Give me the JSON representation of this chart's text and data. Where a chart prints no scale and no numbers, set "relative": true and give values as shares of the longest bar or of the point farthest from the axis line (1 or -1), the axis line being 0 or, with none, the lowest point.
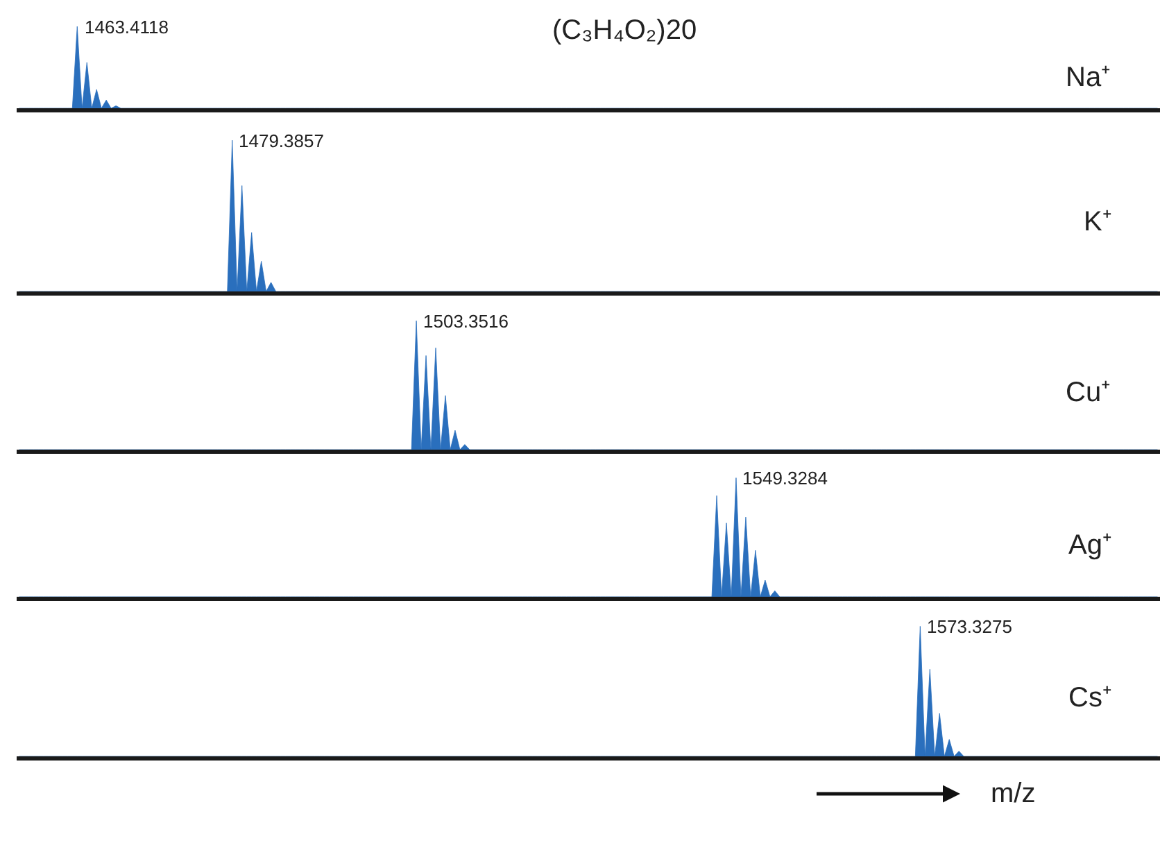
{
  "chart_data": [
    {
      "type": "area",
      "relative": true,
      "title": "(C₃H₄O₂)20",
      "legend": false,
      "categories": [
        null,
        null,
        null,
        null,
        null,
        null,
        null,
        null,
        null,
        null,
        null,
        null,
        null,
        null,
        null,
        null,
        null,
        null,
        null,
        null,
        null,
        null,
        null,
        null,
        null,
        null,
        null,
        null,
        null,
        null,
        null,
        null,
        null,
        null,
        null,
        null,
        null,
        null,
        null,
        null,
        null,
        null,
        null,
        null,
        null,
        null,
        null,
        null,
        null,
        null,
        null,
        null,
        null,
        null,
        null,
        null,
        null,
        null,
        null,
        null,
        null,
        null,
        null,
        null,
        null,
        null,
        null,
        null,
        null,
        null,
        null,
        null,
        null,
        null,
        null,
        null,
        null,
        null,
        null,
        null,
        null,
        null,
        null,
        null,
        null,
        null,
        null,
        null,
        null,
        null,
        null,
        null,
        null,
        null,
        null,
        null,
        null,
        null,
        null,
        null,
        null,
        null,
        null,
        null,
        null,
        null,
        null,
        null,
        null,
        null,
        null,
        null,
        null,
        null,
        null,
        null,
        null,
        null,
        null,
        null,
        null,
        null,
        null,
        null,
        null,
        null,
        null,
        null,
        null,
        null,
        null,
        null,
        null,
        null,
        null,
        null,
        null,
        null,
        null,
        null,
        null,
        null,
        null,
        null,
        null,
        null,
        null,
        null,
        null,
        null,
        null,
        null,
        null,
        null,
        null,
        null,
        null,
        null,
        null,
        null,
        null,
        null,
        null,
        null,
        null,
        null,
        null,
        null,
        null,
        null,
        null,
        null,
        null,
        null,
        null,
        null,
        null,
        null,
        null,
        null,
        null,
        null,
        null,
        null,
        null,
        null,
        null,
        null,
        null,
        null,
        null,
        null,
        null,
        null,
        null,
        null,
        null,
        null,
        null,
        null,
        null,
        null,
        null,
        null,
        null,
        null,
        null,
        null,
        null,
        null,
        null,
        null,
        null,
        null,
        null,
        null,
        null,
        null,
        null,
        null,
        null,
        null,
        null,
        null,
        null,
        null,
        null,
        null,
        null,
        null,
        null,
        null,
        null,
        null,
        null,
        null
      ],
      "series": [
        {
          "name": "Na⁺",
          "color": "#2a6fbd",
          "values": [
            0,
            0,
            0,
            0,
            0,
            0,
            0,
            0,
            0,
            0,
            0,
            0,
            1,
            0,
            0.56,
            0,
            0.23,
            0,
            0.1,
            0,
            0.03,
            0,
            0,
            0,
            0,
            0,
            0,
            0,
            0,
            0,
            0,
            0,
            0,
            0,
            0,
            0,
            0,
            0,
            0,
            0,
            0,
            0,
            0,
            0,
            0,
            0,
            0,
            0,
            0,
            0,
            0,
            0,
            0,
            0,
            0,
            0,
            0,
            0,
            0,
            0,
            0,
            0,
            0,
            0,
            0,
            0,
            0,
            0,
            0,
            0,
            0,
            0,
            0,
            0,
            0,
            0,
            0,
            0,
            0,
            0,
            0,
            0,
            0,
            0,
            0,
            0,
            0,
            0,
            0,
            0,
            0,
            0,
            0,
            0,
            0,
            0,
            0,
            0,
            0,
            0,
            0,
            0,
            0,
            0,
            0,
            0,
            0,
            0,
            0,
            0,
            0,
            0,
            0,
            0,
            0,
            0,
            0,
            0,
            0,
            0,
            0,
            0,
            0,
            0,
            0,
            0,
            0,
            0,
            0,
            0,
            0,
            0,
            0,
            0,
            0,
            0,
            0,
            0,
            0,
            0,
            0,
            0,
            0,
            0,
            0,
            0,
            0,
            0,
            0,
            0,
            0,
            0,
            0,
            0,
            0,
            0,
            0,
            0,
            0,
            0,
            0,
            0,
            0,
            0,
            0,
            0,
            0,
            0,
            0,
            0,
            0,
            0,
            0,
            0,
            0,
            0,
            0,
            0,
            0,
            0,
            0,
            0,
            0,
            0,
            0,
            0,
            0,
            0,
            0,
            0,
            0,
            0,
            0,
            0,
            0,
            0,
            0,
            0,
            0,
            0,
            0,
            0,
            0,
            0,
            0,
            0,
            0,
            0,
            0,
            0,
            0,
            0,
            0,
            0,
            0,
            0,
            0,
            0,
            0,
            0,
            0,
            0,
            0,
            0,
            0,
            0,
            0,
            0,
            0,
            0,
            0,
            0,
            0,
            0,
            0,
            0
          ]
        }
      ],
      "annotations": [
        "1463.4118"
      ]
    },
    {
      "type": "area",
      "relative": true,
      "legend": false,
      "categories": [
        null,
        null,
        null,
        null,
        null,
        null,
        null,
        null,
        null,
        null,
        null,
        null,
        null,
        null,
        null,
        null,
        null,
        null,
        null,
        null,
        null,
        null,
        null,
        null,
        null,
        null,
        null,
        null,
        null,
        null,
        null,
        null,
        null,
        null,
        null,
        null,
        null,
        null,
        null,
        null,
        null,
        null,
        null,
        null,
        null,
        null,
        null,
        null,
        null,
        null,
        null,
        null,
        null,
        null,
        null,
        null,
        null,
        null,
        null,
        null,
        null,
        null,
        null,
        null,
        null,
        null,
        null,
        null,
        null,
        null,
        null,
        null,
        null,
        null,
        null,
        null,
        null,
        null,
        null,
        null,
        null,
        null,
        null,
        null,
        null,
        null,
        null,
        null,
        null,
        null,
        null,
        null,
        null,
        null,
        null,
        null,
        null,
        null,
        null,
        null,
        null,
        null,
        null,
        null,
        null,
        null,
        null,
        null,
        null,
        null,
        null,
        null,
        null,
        null,
        null,
        null,
        null,
        null,
        null,
        null,
        null,
        null,
        null,
        null,
        null,
        null,
        null,
        null,
        null,
        null,
        null,
        null,
        null,
        null,
        null,
        null,
        null,
        null,
        null,
        null,
        null,
        null,
        null,
        null,
        null,
        null,
        null,
        null,
        null,
        null,
        null,
        null,
        null,
        null,
        null,
        null,
        null,
        null,
        null,
        null,
        null,
        null,
        null,
        null,
        null,
        null,
        null,
        null,
        null,
        null,
        null,
        null,
        null,
        null,
        null,
        null,
        null,
        null,
        null,
        null,
        null,
        null,
        null,
        null,
        null,
        null,
        null,
        null,
        null,
        null,
        null,
        null,
        null,
        null,
        null,
        null,
        null,
        null,
        null,
        null,
        null,
        null,
        null,
        null,
        null,
        null,
        null,
        null,
        null,
        null,
        null,
        null,
        null,
        null,
        null,
        null,
        null,
        null,
        null,
        null,
        null,
        null,
        null,
        null,
        null,
        null,
        null,
        null,
        null,
        null,
        null,
        null,
        null,
        null,
        null,
        null
      ],
      "series": [
        {
          "name": "K⁺",
          "color": "#2a6fbd",
          "values": [
            0,
            0,
            0,
            0,
            0,
            0,
            0,
            0,
            0,
            0,
            0,
            0,
            0,
            0,
            0,
            0,
            0,
            0,
            0,
            0,
            0,
            0,
            0,
            0,
            0,
            0,
            0,
            0,
            0,
            0,
            0,
            0,
            0,
            0,
            0,
            0,
            0,
            0,
            0,
            0,
            0,
            0,
            0,
            0,
            1,
            0,
            0.7,
            0,
            0.39,
            0,
            0.2,
            0,
            0.06,
            0,
            0,
            0,
            0,
            0,
            0,
            0,
            0,
            0,
            0,
            0,
            0,
            0,
            0,
            0,
            0,
            0,
            0,
            0,
            0,
            0,
            0,
            0,
            0,
            0,
            0,
            0,
            0,
            0,
            0,
            0,
            0,
            0,
            0,
            0,
            0,
            0,
            0,
            0,
            0,
            0,
            0,
            0,
            0,
            0,
            0,
            0,
            0,
            0,
            0,
            0,
            0,
            0,
            0,
            0,
            0,
            0,
            0,
            0,
            0,
            0,
            0,
            0,
            0,
            0,
            0,
            0,
            0,
            0,
            0,
            0,
            0,
            0,
            0,
            0,
            0,
            0,
            0,
            0,
            0,
            0,
            0,
            0,
            0,
            0,
            0,
            0,
            0,
            0,
            0,
            0,
            0,
            0,
            0,
            0,
            0,
            0,
            0,
            0,
            0,
            0,
            0,
            0,
            0,
            0,
            0,
            0,
            0,
            0,
            0,
            0,
            0,
            0,
            0,
            0,
            0,
            0,
            0,
            0,
            0,
            0,
            0,
            0,
            0,
            0,
            0,
            0,
            0,
            0,
            0,
            0,
            0,
            0,
            0,
            0,
            0,
            0,
            0,
            0,
            0,
            0,
            0,
            0,
            0,
            0,
            0,
            0,
            0,
            0,
            0,
            0,
            0,
            0,
            0,
            0,
            0,
            0,
            0,
            0,
            0,
            0,
            0,
            0,
            0,
            0,
            0,
            0,
            0,
            0,
            0,
            0,
            0,
            0,
            0,
            0,
            0,
            0,
            0,
            0,
            0,
            0,
            0,
            0
          ]
        }
      ],
      "annotations": [
        "1479.3857"
      ]
    },
    {
      "type": "area",
      "relative": true,
      "legend": false,
      "categories": [
        null,
        null,
        null,
        null,
        null,
        null,
        null,
        null,
        null,
        null,
        null,
        null,
        null,
        null,
        null,
        null,
        null,
        null,
        null,
        null,
        null,
        null,
        null,
        null,
        null,
        null,
        null,
        null,
        null,
        null,
        null,
        null,
        null,
        null,
        null,
        null,
        null,
        null,
        null,
        null,
        null,
        null,
        null,
        null,
        null,
        null,
        null,
        null,
        null,
        null,
        null,
        null,
        null,
        null,
        null,
        null,
        null,
        null,
        null,
        null,
        null,
        null,
        null,
        null,
        null,
        null,
        null,
        null,
        null,
        null,
        null,
        null,
        null,
        null,
        null,
        null,
        null,
        null,
        null,
        null,
        null,
        null,
        null,
        null,
        null,
        null,
        null,
        null,
        null,
        null,
        null,
        null,
        null,
        null,
        null,
        null,
        null,
        null,
        null,
        null,
        null,
        null,
        null,
        null,
        null,
        null,
        null,
        null,
        null,
        null,
        null,
        null,
        null,
        null,
        null,
        null,
        null,
        null,
        null,
        null,
        null,
        null,
        null,
        null,
        null,
        null,
        null,
        null,
        null,
        null,
        null,
        null,
        null,
        null,
        null,
        null,
        null,
        null,
        null,
        null,
        null,
        null,
        null,
        null,
        null,
        null,
        null,
        null,
        null,
        null,
        null,
        null,
        null,
        null,
        null,
        null,
        null,
        null,
        null,
        null,
        null,
        null,
        null,
        null,
        null,
        null,
        null,
        null,
        null,
        null,
        null,
        null,
        null,
        null,
        null,
        null,
        null,
        null,
        null,
        null,
        null,
        null,
        null,
        null,
        null,
        null,
        null,
        null,
        null,
        null,
        null,
        null,
        null,
        null,
        null,
        null,
        null,
        null,
        null,
        null,
        null,
        null,
        null,
        null,
        null,
        null,
        null,
        null,
        null,
        null,
        null,
        null,
        null,
        null,
        null,
        null,
        null,
        null,
        null,
        null,
        null,
        null,
        null,
        null,
        null,
        null,
        null,
        null,
        null,
        null,
        null,
        null,
        null,
        null,
        null,
        null
      ],
      "series": [
        {
          "name": "Cu⁺",
          "color": "#2a6fbd",
          "values": [
            0,
            0,
            0,
            0,
            0,
            0,
            0,
            0,
            0,
            0,
            0,
            0,
            0,
            0,
            0,
            0,
            0,
            0,
            0,
            0,
            0,
            0,
            0,
            0,
            0,
            0,
            0,
            0,
            0,
            0,
            0,
            0,
            0,
            0,
            0,
            0,
            0,
            0,
            0,
            0,
            0,
            0,
            0,
            0,
            0,
            0,
            0,
            0,
            0,
            0,
            0,
            0,
            0,
            0,
            0,
            0,
            0,
            0,
            0,
            0,
            0,
            0,
            0,
            0,
            0,
            0,
            0,
            0,
            0,
            0,
            0,
            0,
            0,
            0,
            0,
            0,
            0,
            0,
            0,
            0,
            0,
            0,
            1,
            0,
            0.73,
            0,
            0.79,
            0,
            0.42,
            0,
            0.15,
            0,
            0.04,
            0,
            0,
            0,
            0,
            0,
            0,
            0,
            0,
            0,
            0,
            0,
            0,
            0,
            0,
            0,
            0,
            0,
            0,
            0,
            0,
            0,
            0,
            0,
            0,
            0,
            0,
            0,
            0,
            0,
            0,
            0,
            0,
            0,
            0,
            0,
            0,
            0,
            0,
            0,
            0,
            0,
            0,
            0,
            0,
            0,
            0,
            0,
            0,
            0,
            0,
            0,
            0,
            0,
            0,
            0,
            0,
            0,
            0,
            0,
            0,
            0,
            0,
            0,
            0,
            0,
            0,
            0,
            0,
            0,
            0,
            0,
            0,
            0,
            0,
            0,
            0,
            0,
            0,
            0,
            0,
            0,
            0,
            0,
            0,
            0,
            0,
            0,
            0,
            0,
            0,
            0,
            0,
            0,
            0,
            0,
            0,
            0,
            0,
            0,
            0,
            0,
            0,
            0,
            0,
            0,
            0,
            0,
            0,
            0,
            0,
            0,
            0,
            0,
            0,
            0,
            0,
            0,
            0,
            0,
            0,
            0,
            0,
            0,
            0,
            0,
            0,
            0,
            0,
            0,
            0,
            0,
            0,
            0,
            0,
            0,
            0,
            0,
            0,
            0,
            0,
            0,
            0,
            0
          ]
        }
      ],
      "annotations": [
        "1503.3516"
      ]
    },
    {
      "type": "area",
      "relative": true,
      "legend": false,
      "categories": [
        null,
        null,
        null,
        null,
        null,
        null,
        null,
        null,
        null,
        null,
        null,
        null,
        null,
        null,
        null,
        null,
        null,
        null,
        null,
        null,
        null,
        null,
        null,
        null,
        null,
        null,
        null,
        null,
        null,
        null,
        null,
        null,
        null,
        null,
        null,
        null,
        null,
        null,
        null,
        null,
        null,
        null,
        null,
        null,
        null,
        null,
        null,
        null,
        null,
        null,
        null,
        null,
        null,
        null,
        null,
        null,
        null,
        null,
        null,
        null,
        null,
        null,
        null,
        null,
        null,
        null,
        null,
        null,
        null,
        null,
        null,
        null,
        null,
        null,
        null,
        null,
        null,
        null,
        null,
        null,
        null,
        null,
        null,
        null,
        null,
        null,
        null,
        null,
        null,
        null,
        null,
        null,
        null,
        null,
        null,
        null,
        null,
        null,
        null,
        null,
        null,
        null,
        null,
        null,
        null,
        null,
        null,
        null,
        null,
        null,
        null,
        null,
        null,
        null,
        null,
        null,
        null,
        null,
        null,
        null,
        null,
        null,
        null,
        null,
        null,
        null,
        null,
        null,
        null,
        null,
        null,
        null,
        null,
        null,
        null,
        null,
        null,
        null,
        null,
        null,
        null,
        null,
        null,
        null,
        null,
        null,
        null,
        null,
        null,
        null,
        null,
        null,
        null,
        null,
        null,
        null,
        null,
        null,
        null,
        null,
        null,
        null,
        null,
        null,
        null,
        null,
        null,
        null,
        null,
        null,
        null,
        null,
        null,
        null,
        null,
        null,
        null,
        null,
        null,
        null,
        null,
        null,
        null,
        null,
        null,
        null,
        null,
        null,
        null,
        null,
        null,
        null,
        null,
        null,
        null,
        null,
        null,
        null,
        null,
        null,
        null,
        null,
        null,
        null,
        null,
        null,
        null,
        null,
        null,
        null,
        null,
        null,
        null,
        null,
        null,
        null,
        null,
        null,
        null,
        null,
        null,
        null,
        null,
        null,
        null,
        null,
        null,
        null,
        null,
        null,
        null,
        null,
        null,
        null,
        null,
        null
      ],
      "series": [
        {
          "name": "Ag⁺",
          "color": "#2a6fbd",
          "values": [
            0,
            0,
            0,
            0,
            0,
            0,
            0,
            0,
            0,
            0,
            0,
            0,
            0,
            0,
            0,
            0,
            0,
            0,
            0,
            0,
            0,
            0,
            0,
            0,
            0,
            0,
            0,
            0,
            0,
            0,
            0,
            0,
            0,
            0,
            0,
            0,
            0,
            0,
            0,
            0,
            0,
            0,
            0,
            0,
            0,
            0,
            0,
            0,
            0,
            0,
            0,
            0,
            0,
            0,
            0,
            0,
            0,
            0,
            0,
            0,
            0,
            0,
            0,
            0,
            0,
            0,
            0,
            0,
            0,
            0,
            0,
            0,
            0,
            0,
            0,
            0,
            0,
            0,
            0,
            0,
            0,
            0,
            0,
            0,
            0,
            0,
            0,
            0,
            0,
            0,
            0,
            0,
            0,
            0,
            0,
            0,
            0,
            0,
            0,
            0,
            0,
            0,
            0,
            0,
            0,
            0,
            0,
            0,
            0,
            0,
            0,
            0,
            0,
            0,
            0,
            0,
            0,
            0,
            0,
            0,
            0,
            0,
            0,
            0,
            0,
            0,
            0,
            0,
            0,
            0,
            0,
            0,
            0,
            0,
            0,
            0,
            0,
            0,
            0,
            0,
            0,
            0,
            0,
            0,
            0.85,
            0,
            0.62,
            0,
            1,
            0,
            0.67,
            0,
            0.39,
            0,
            0.14,
            0,
            0.05,
            0,
            0,
            0,
            0,
            0,
            0,
            0,
            0,
            0,
            0,
            0,
            0,
            0,
            0,
            0,
            0,
            0,
            0,
            0,
            0,
            0,
            0,
            0,
            0,
            0,
            0,
            0,
            0,
            0,
            0,
            0,
            0,
            0,
            0,
            0,
            0,
            0,
            0,
            0,
            0,
            0,
            0,
            0,
            0,
            0,
            0,
            0,
            0,
            0,
            0,
            0,
            0,
            0,
            0,
            0,
            0,
            0,
            0,
            0,
            0,
            0,
            0,
            0,
            0,
            0,
            0,
            0,
            0,
            0,
            0,
            0,
            0,
            0,
            0,
            0,
            0,
            0,
            0,
            0
          ]
        }
      ],
      "annotations": [
        "1549.3284"
      ]
    },
    {
      "type": "area",
      "relative": true,
      "legend": false,
      "xlabel": "m/z",
      "categories": [
        null,
        null,
        null,
        null,
        null,
        null,
        null,
        null,
        null,
        null,
        null,
        null,
        null,
        null,
        null,
        null,
        null,
        null,
        null,
        null,
        null,
        null,
        null,
        null,
        null,
        null,
        null,
        null,
        null,
        null,
        null,
        null,
        null,
        null,
        null,
        null,
        null,
        null,
        null,
        null,
        null,
        null,
        null,
        null,
        null,
        null,
        null,
        null,
        null,
        null,
        null,
        null,
        null,
        null,
        null,
        null,
        null,
        null,
        null,
        null,
        null,
        null,
        null,
        null,
        null,
        null,
        null,
        null,
        null,
        null,
        null,
        null,
        null,
        null,
        null,
        null,
        null,
        null,
        null,
        null,
        null,
        null,
        null,
        null,
        null,
        null,
        null,
        null,
        null,
        null,
        null,
        null,
        null,
        null,
        null,
        null,
        null,
        null,
        null,
        null,
        null,
        null,
        null,
        null,
        null,
        null,
        null,
        null,
        null,
        null,
        null,
        null,
        null,
        null,
        null,
        null,
        null,
        null,
        null,
        null,
        null,
        null,
        null,
        null,
        null,
        null,
        null,
        null,
        null,
        null,
        null,
        null,
        null,
        null,
        null,
        null,
        null,
        null,
        null,
        null,
        null,
        null,
        null,
        null,
        null,
        null,
        null,
        null,
        null,
        null,
        null,
        null,
        null,
        null,
        null,
        null,
        null,
        null,
        null,
        null,
        null,
        null,
        null,
        null,
        null,
        null,
        null,
        null,
        null,
        null,
        null,
        null,
        null,
        null,
        null,
        null,
        null,
        null,
        null,
        null,
        null,
        null,
        null,
        null,
        null,
        null,
        null,
        null,
        null,
        null,
        null,
        null,
        null,
        null,
        null,
        null,
        null,
        null,
        null,
        null,
        null,
        null,
        null,
        null,
        null,
        null,
        null,
        null,
        null,
        null,
        null,
        null,
        null,
        null,
        null,
        null,
        null,
        null,
        null,
        null,
        null,
        null,
        null,
        null,
        null,
        null,
        null,
        null,
        null,
        null,
        null,
        null,
        null,
        null,
        null,
        null
      ],
      "series": [
        {
          "name": "Cs⁺",
          "color": "#2a6fbd",
          "values": [
            0,
            0,
            0,
            0,
            0,
            0,
            0,
            0,
            0,
            0,
            0,
            0,
            0,
            0,
            0,
            0,
            0,
            0,
            0,
            0,
            0,
            0,
            0,
            0,
            0,
            0,
            0,
            0,
            0,
            0,
            0,
            0,
            0,
            0,
            0,
            0,
            0,
            0,
            0,
            0,
            0,
            0,
            0,
            0,
            0,
            0,
            0,
            0,
            0,
            0,
            0,
            0,
            0,
            0,
            0,
            0,
            0,
            0,
            0,
            0,
            0,
            0,
            0,
            0,
            0,
            0,
            0,
            0,
            0,
            0,
            0,
            0,
            0,
            0,
            0,
            0,
            0,
            0,
            0,
            0,
            0,
            0,
            0,
            0,
            0,
            0,
            0,
            0,
            0,
            0,
            0,
            0,
            0,
            0,
            0,
            0,
            0,
            0,
            0,
            0,
            0,
            0,
            0,
            0,
            0,
            0,
            0,
            0,
            0,
            0,
            0,
            0,
            0,
            0,
            0,
            0,
            0,
            0,
            0,
            0,
            0,
            0,
            0,
            0,
            0,
            0,
            0,
            0,
            0,
            0,
            0,
            0,
            0,
            0,
            0,
            0,
            0,
            0,
            0,
            0,
            0,
            0,
            0,
            0,
            0,
            0,
            0,
            0,
            0,
            0,
            0,
            0,
            0,
            0,
            0,
            0,
            0,
            0,
            0,
            0,
            0,
            0,
            0,
            0,
            0,
            0,
            0,
            0,
            0,
            0,
            0,
            0,
            0,
            0,
            0,
            0,
            0,
            0,
            0,
            0,
            0,
            0,
            0,
            0,
            0,
            0,
            1,
            0,
            0.67,
            0,
            0.33,
            0,
            0.13,
            0,
            0.04,
            0,
            0,
            0,
            0,
            0,
            0,
            0,
            0,
            0,
            0,
            0,
            0,
            0,
            0,
            0,
            0,
            0,
            0,
            0,
            0,
            0,
            0,
            0,
            0,
            0,
            0,
            0,
            0,
            0,
            0,
            0,
            0,
            0,
            0,
            0,
            0,
            0,
            0,
            0,
            0,
            0
          ]
        }
      ],
      "annotations": [
        "1573.3275"
      ]
    }
  ]
}
